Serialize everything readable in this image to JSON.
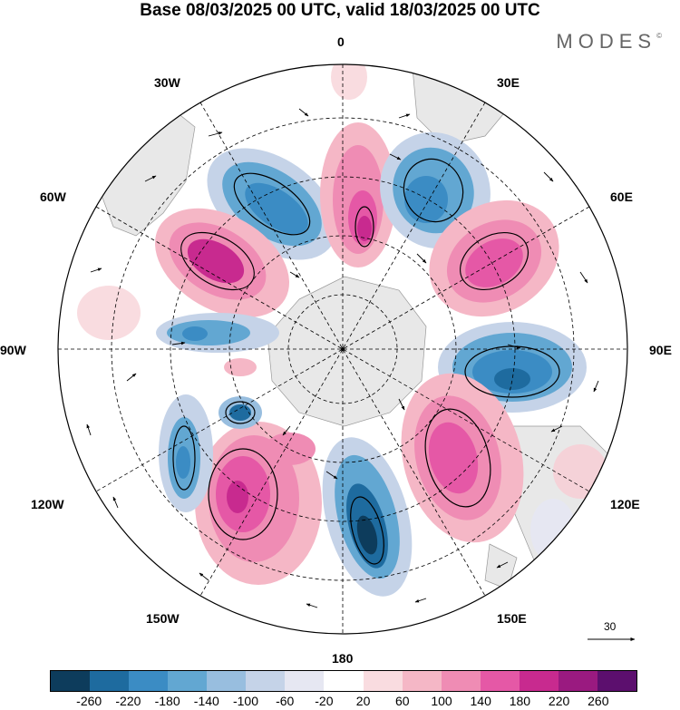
{
  "title": "Base 08/03/2025 00 UTC, valid 18/03/2025 00 UTC",
  "brand": "MODES",
  "brand_mark": "©",
  "map": {
    "projection": "south-polar-stereographic",
    "lon_labels": {
      "top": "0",
      "top_right": "30E",
      "right_upper": "60E",
      "right": "90E",
      "right_lower": "120E",
      "bottom_right": "150E",
      "bottom": "180",
      "bottom_left": "150W",
      "left_lower": "120W",
      "left": "90W",
      "left_upper": "60W",
      "top_left": "30W"
    },
    "anomaly_centers": [
      {
        "sign": "negative",
        "lon": "30W",
        "value": -180
      },
      {
        "sign": "positive",
        "lon": "0",
        "value": 220
      },
      {
        "sign": "negative",
        "lon": "30E",
        "value": -180
      },
      {
        "sign": "positive",
        "lon": "60E",
        "value": 200
      },
      {
        "sign": "negative",
        "lon": "90E",
        "value": -220
      },
      {
        "sign": "positive",
        "lon": "120E",
        "value": 180
      },
      {
        "sign": "negative",
        "lon": "180",
        "value": -260
      },
      {
        "sign": "positive",
        "lon": "150W",
        "value": 220
      },
      {
        "sign": "negative",
        "lon": "120W",
        "value": -180
      },
      {
        "sign": "positive",
        "lon": "60W",
        "value": 220
      },
      {
        "sign": "negative",
        "lon": "90W",
        "value": -140
      }
    ]
  },
  "reference_vector": {
    "value": "30"
  },
  "colorbar": {
    "colors": [
      "#0d3c5c",
      "#1e6b9f",
      "#3b8cc4",
      "#62a7d2",
      "#98bedf",
      "#c5d3e8",
      "#e6e7f2",
      "#ffffff",
      "#f9dce0",
      "#f5b7c6",
      "#ef8cb4",
      "#e558a6",
      "#c82a8f",
      "#9a1a80",
      "#5c0f6e"
    ],
    "ticks": [
      "-260",
      "-220",
      "-180",
      "-140",
      "-100",
      "-60",
      "-20",
      "20",
      "60",
      "100",
      "140",
      "180",
      "220",
      "260"
    ]
  }
}
